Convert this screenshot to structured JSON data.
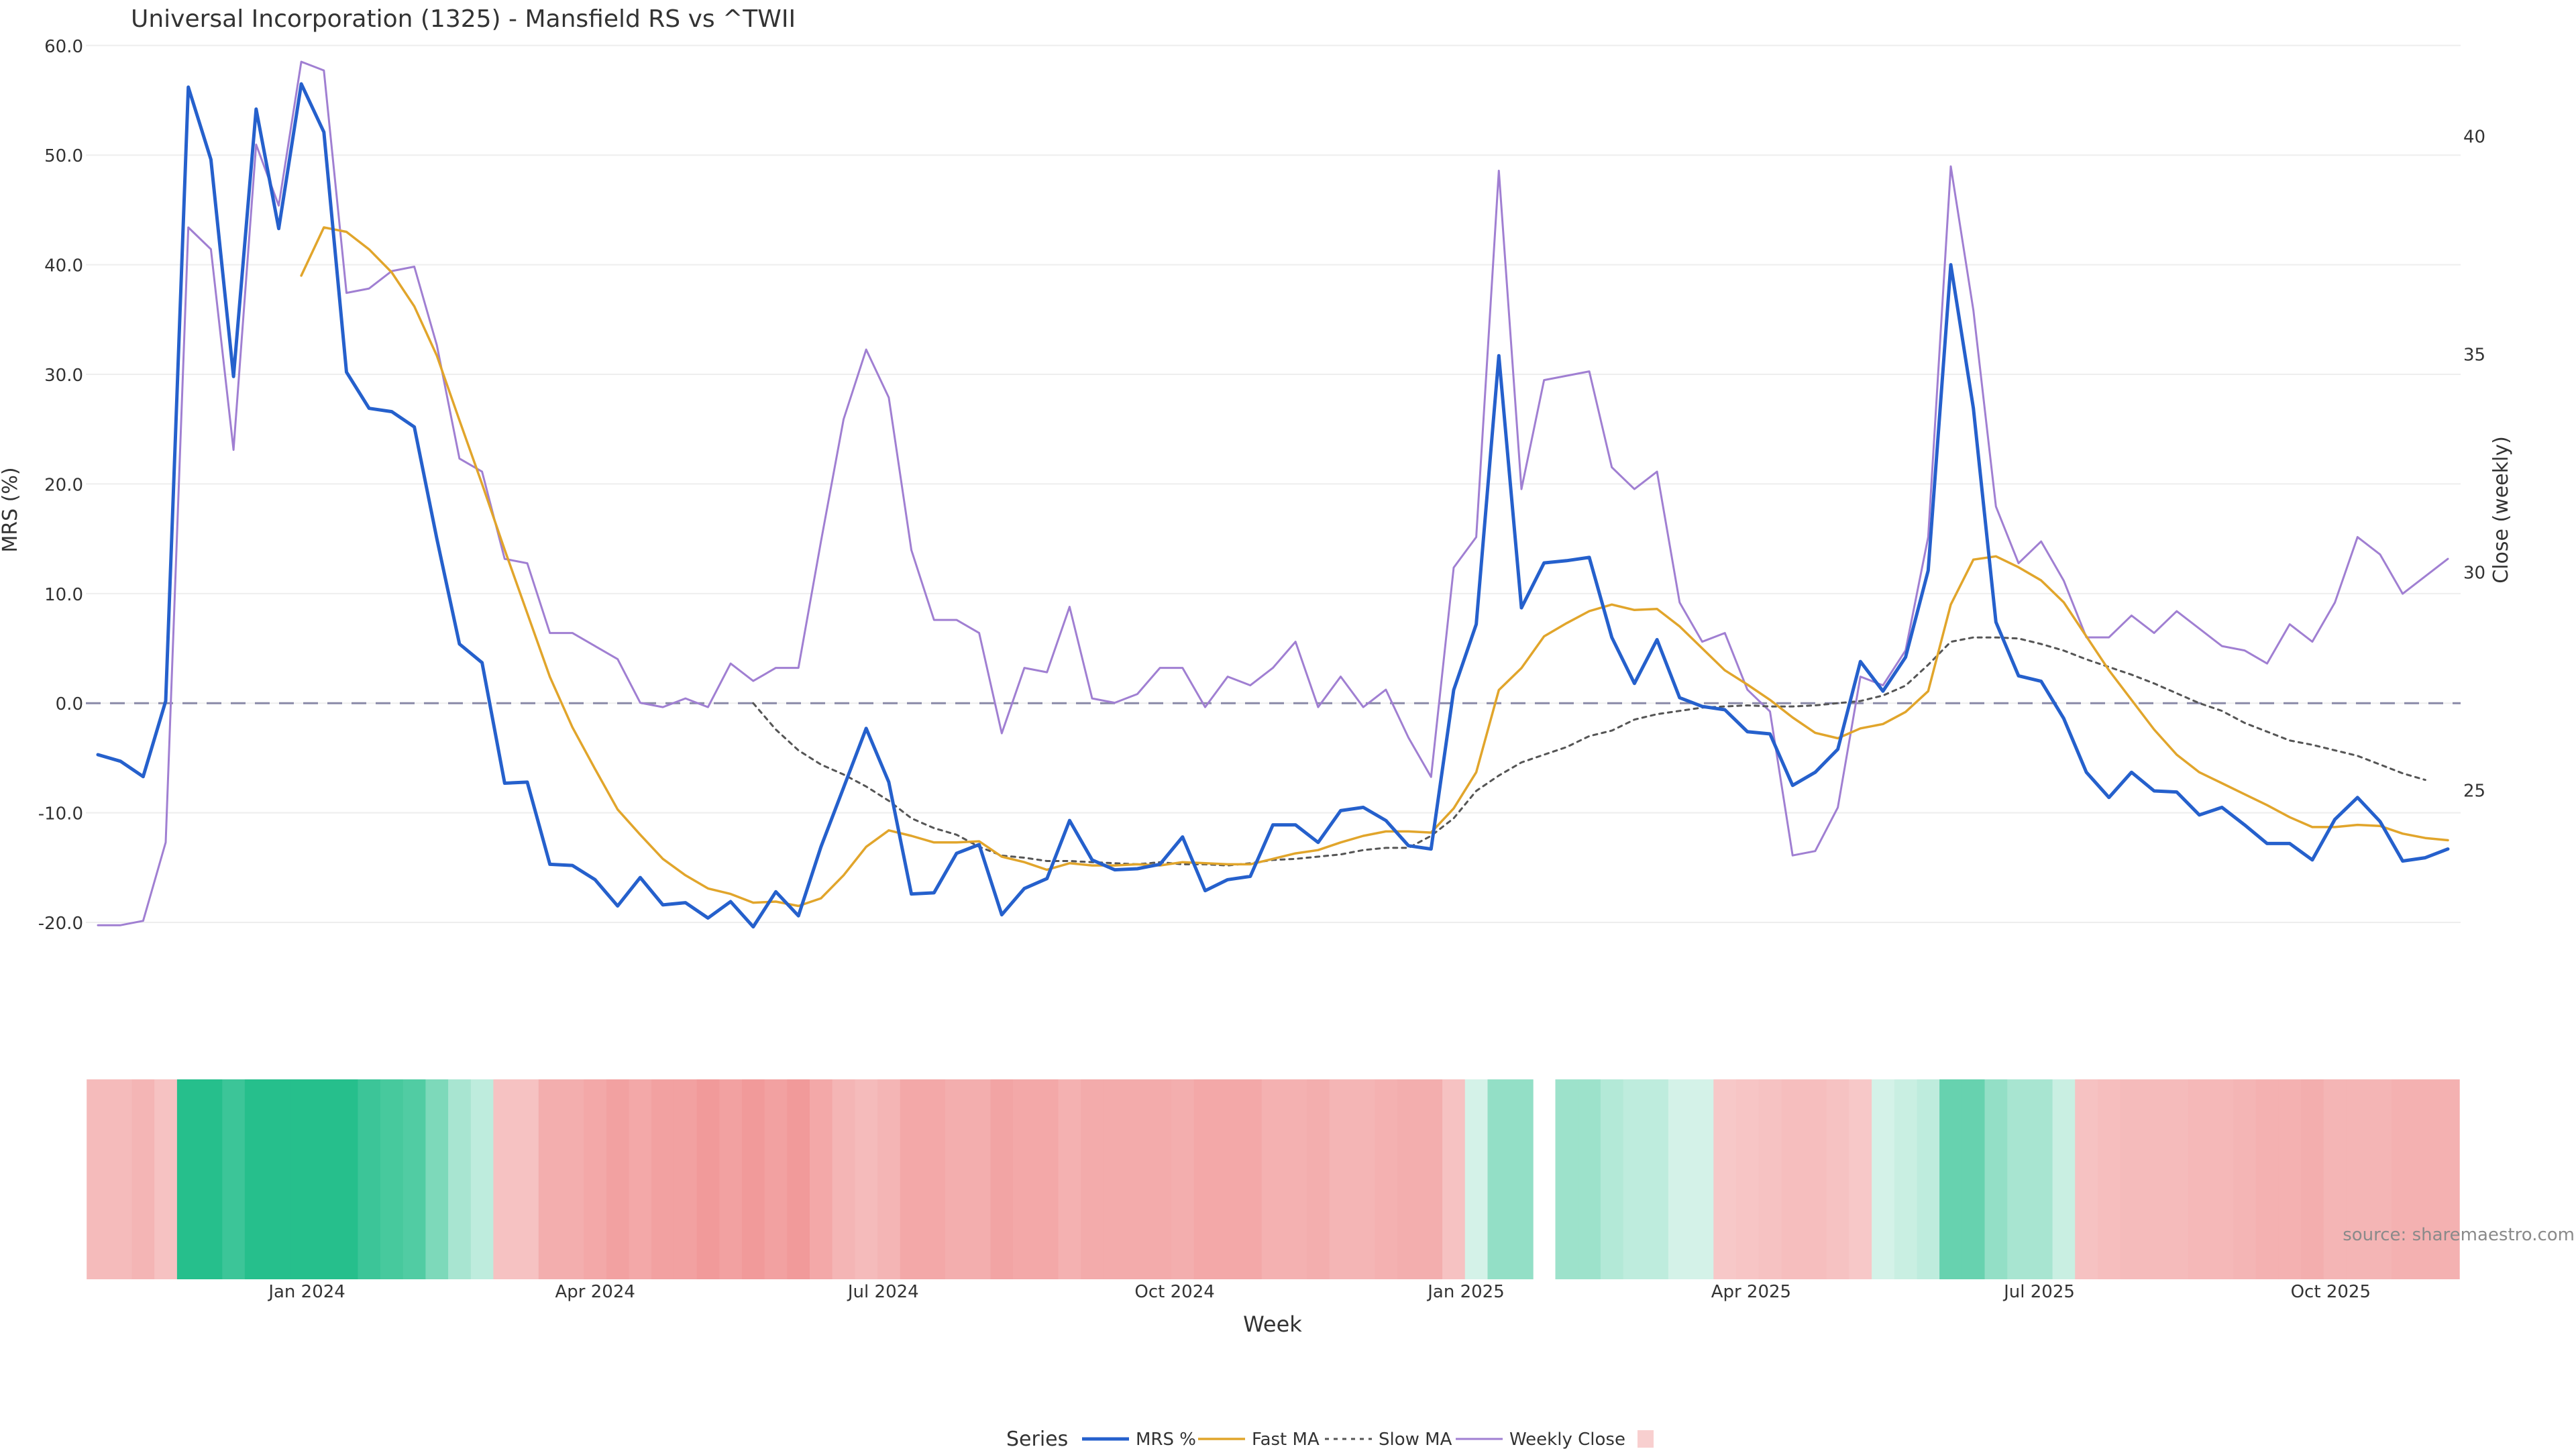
{
  "chart_data": {
    "type": "line",
    "title": "Universal Incorporation (1325) - Mansfield RS vs ^TWII",
    "xlabel": "Week",
    "ylabel_left": "MRS (%)",
    "ylabel_right": "Close (weekly)",
    "ylim_left": [
      -26.3,
      61.7
    ],
    "ylim_right": [
      20.38,
      42.5
    ],
    "yticks_left": [
      "60.0",
      "50.0",
      "40.0",
      "30.0",
      "20.0",
      "10.0",
      "0.0",
      "-10.0",
      "-20.0"
    ],
    "yticks_right": [
      "40",
      "35",
      "30",
      "25"
    ],
    "xticks": [
      "Jan 2024",
      "Apr 2024",
      "Jul 2024",
      "Oct 2024",
      "Jan 2025",
      "Apr 2025",
      "Jul 2025",
      "Oct 2025"
    ],
    "x_start_week": "2023-10-27",
    "x_end_week": "2025-11-07",
    "reference_line": 0,
    "source": "source: sharemaestro.com",
    "legend": {
      "title": "Series",
      "position": "bottom",
      "entries": [
        "MRS %",
        "Fast MA",
        "Slow MA",
        "Weekly Close"
      ]
    },
    "colors": {
      "mrs": "#2560cc",
      "fast": "#e1a52b",
      "slow": "#555555",
      "close": "#a07fd2",
      "zero": "#8a8aa8",
      "strip_pos": "#26bf8c",
      "strip_neg": "#ee8888"
    },
    "series": [
      {
        "name": "MRS %",
        "values": [
          -4.7,
          -5.3,
          -6.7,
          0.2,
          56.2,
          49.6,
          29.8,
          54.2,
          43.3,
          56.5,
          52.1,
          30.2,
          26.9,
          26.6,
          25.2,
          15.0,
          5.4,
          3.7,
          -7.3,
          -7.2,
          -14.7,
          -14.8,
          -16.1,
          -18.5,
          -15.9,
          -18.4,
          -18.2,
          -19.6,
          -18.1,
          -20.4,
          -17.2,
          -19.4,
          -13.1,
          -7.7,
          -2.3,
          -7.2,
          -17.4,
          -17.3,
          -13.7,
          -12.9,
          -19.3,
          -16.9,
          -16.0,
          -10.7,
          -14.3,
          -15.2,
          -15.1,
          -14.7,
          -12.2,
          -17.1,
          -16.1,
          -15.8,
          -11.1,
          -11.1,
          -12.7,
          -9.8,
          -9.5,
          -10.7,
          -13.0,
          -13.3,
          1.2,
          7.2,
          31.7,
          8.7,
          12.8,
          13.0,
          13.3,
          6.0,
          1.8,
          5.8,
          0.5,
          -0.3,
          -0.6,
          -2.6,
          -2.8,
          -7.5,
          -6.3,
          -4.2,
          3.8,
          1.1,
          4.2,
          12.1,
          40.0,
          26.9,
          7.4,
          2.5,
          2.0,
          -1.4,
          -6.3,
          -8.6,
          -6.3,
          -8.0,
          -8.1,
          -10.2,
          -9.5,
          -11.1,
          -12.8,
          -12.8,
          -14.3,
          -10.6,
          -8.6,
          -10.8,
          -14.4,
          -14.1,
          -13.3
        ]
      },
      {
        "name": "Fast MA",
        "values": [
          null,
          null,
          null,
          null,
          null,
          null,
          null,
          null,
          null,
          39.0,
          43.4,
          43.0,
          41.4,
          39.3,
          36.2,
          31.7,
          25.8,
          20.0,
          14.0,
          8.2,
          2.4,
          -2.2,
          -6.0,
          -9.7,
          -12.0,
          -14.2,
          -15.7,
          -16.9,
          -17.4,
          -18.2,
          -18.1,
          -18.5,
          -17.8,
          -15.7,
          -13.1,
          -11.6,
          -12.1,
          -12.7,
          -12.7,
          -12.6,
          -14.0,
          -14.5,
          -15.2,
          -14.6,
          -14.8,
          -14.8,
          -14.7,
          -14.8,
          -14.5,
          -14.6,
          -14.7,
          -14.7,
          -14.2,
          -13.7,
          -13.4,
          -12.7,
          -12.1,
          -11.7,
          -11.7,
          -11.8,
          -9.6,
          -6.3,
          1.2,
          3.2,
          6.1,
          7.3,
          8.4,
          9.0,
          8.5,
          8.6,
          7.0,
          5.0,
          3.0,
          1.7,
          0.3,
          -1.3,
          -2.7,
          -3.2,
          -2.3,
          -1.9,
          -0.8,
          1.1,
          9.0,
          13.1,
          13.4,
          12.4,
          11.2,
          9.2,
          6.1,
          3.0,
          0.3,
          -2.4,
          -4.7,
          -6.3,
          -7.3,
          -8.3,
          -9.3,
          -10.4,
          -11.3,
          -11.3,
          -11.1,
          -11.2,
          -11.9,
          -12.3,
          -12.5
        ]
      },
      {
        "name": "Slow MA",
        "values": [
          null,
          null,
          null,
          null,
          null,
          null,
          null,
          null,
          null,
          null,
          null,
          null,
          null,
          null,
          null,
          null,
          null,
          null,
          null,
          null,
          null,
          null,
          null,
          null,
          null,
          null,
          null,
          null,
          null,
          0.0,
          -2.4,
          -4.3,
          -5.6,
          -6.5,
          -7.6,
          -8.9,
          -10.5,
          -11.4,
          -12.0,
          -13.1,
          -13.9,
          -14.1,
          -14.4,
          -14.4,
          -14.5,
          -14.6,
          -14.7,
          -14.5,
          -14.7,
          -14.7,
          -14.8,
          -14.6,
          -14.3,
          -14.2,
          -14.0,
          -13.8,
          -13.4,
          -13.2,
          -13.2,
          -12.1,
          -10.5,
          -8.0,
          -6.6,
          -5.4,
          -4.7,
          -4.0,
          -3.0,
          -2.5,
          -1.5,
          -1.0,
          -0.7,
          -0.4,
          -0.3,
          -0.2,
          -0.3,
          -0.3,
          -0.2,
          0.0,
          0.2,
          0.7,
          1.6,
          3.5,
          5.6,
          6.0,
          6.0,
          5.9,
          5.4,
          4.8,
          4.0,
          3.3,
          2.6,
          1.8,
          0.9,
          0.0,
          -0.7,
          -1.8,
          -2.6,
          -3.4,
          -3.8,
          -4.3,
          -4.8,
          -5.6,
          -6.4,
          -7.0
        ]
      },
      {
        "name": "Weekly Close",
        "values": [
          21.9,
          21.9,
          22.0,
          23.8,
          37.9,
          37.4,
          32.8,
          39.8,
          38.4,
          41.7,
          41.5,
          36.4,
          36.5,
          36.9,
          37.0,
          35.2,
          32.6,
          32.3,
          30.3,
          30.2,
          28.6,
          28.6,
          28.3,
          28.0,
          27.0,
          26.9,
          27.1,
          26.9,
          27.9,
          27.5,
          27.8,
          27.8,
          30.7,
          33.5,
          35.1,
          34.0,
          30.5,
          28.9,
          28.9,
          28.6,
          26.3,
          27.8,
          27.7,
          29.2,
          27.1,
          27.0,
          27.2,
          27.8,
          27.8,
          26.9,
          27.6,
          27.4,
          27.8,
          28.4,
          26.9,
          27.6,
          26.9,
          27.3,
          26.2,
          25.3,
          30.1,
          30.8,
          39.2,
          31.9,
          34.4,
          34.5,
          34.6,
          32.4,
          31.9,
          32.3,
          29.3,
          28.4,
          28.6,
          27.3,
          26.8,
          23.5,
          23.6,
          24.6,
          27.6,
          27.4,
          28.2,
          30.8,
          39.3,
          36.0,
          31.5,
          30.2,
          30.7,
          29.8,
          28.5,
          28.5,
          29.0,
          28.6,
          29.1,
          28.7,
          28.3,
          28.2,
          27.9,
          28.8,
          28.4,
          29.3,
          30.8,
          30.4,
          29.5,
          29.9,
          30.3
        ]
      }
    ],
    "strip": {
      "gap_after_week": 64,
      "values": [
        -0.4,
        -0.4,
        -0.5,
        -0.3,
        1.0,
        1.0,
        0.9,
        1.0,
        1.0,
        1.0,
        1.0,
        1.0,
        0.9,
        0.85,
        0.8,
        0.6,
        0.4,
        0.3,
        -0.3,
        -0.3,
        -0.6,
        -0.6,
        -0.7,
        -0.8,
        -0.7,
        -0.8,
        -0.8,
        -0.9,
        -0.8,
        -0.9,
        -0.8,
        -0.9,
        -0.7,
        -0.5,
        -0.4,
        -0.5,
        -0.7,
        -0.7,
        -0.6,
        -0.6,
        -0.75,
        -0.7,
        -0.7,
        -0.55,
        -0.65,
        -0.65,
        -0.65,
        -0.65,
        -0.6,
        -0.7,
        -0.7,
        -0.7,
        -0.55,
        -0.55,
        -0.6,
        -0.5,
        -0.5,
        -0.55,
        -0.6,
        -0.6,
        -0.3,
        0.2,
        0.5,
        0.5,
        null,
        0.45,
        0.45,
        0.35,
        0.3,
        0.3,
        0.2,
        0.2,
        -0.2,
        -0.25,
        -0.3,
        -0.35,
        -0.35,
        -0.3,
        -0.2,
        0.2,
        0.25,
        0.3,
        0.7,
        0.7,
        0.5,
        0.4,
        0.4,
        0.25,
        -0.3,
        -0.35,
        -0.4,
        -0.4,
        -0.4,
        -0.45,
        -0.45,
        -0.5,
        -0.55,
        -0.55,
        -0.6,
        -0.5,
        -0.5,
        -0.5,
        -0.55,
        -0.55,
        -0.55
      ]
    }
  }
}
